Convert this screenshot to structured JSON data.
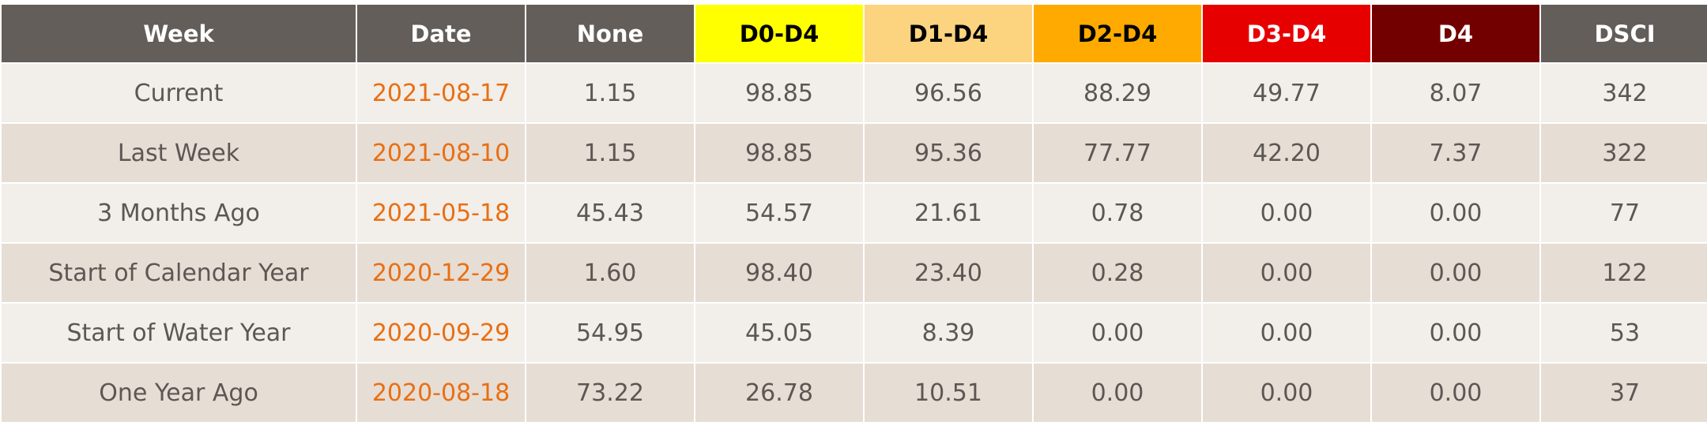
{
  "chart_data": {
    "type": "table",
    "columns": [
      {
        "label": "Week",
        "bg": "#645e5a",
        "fg": "#ffffff"
      },
      {
        "label": "Date",
        "bg": "#645e5a",
        "fg": "#ffffff"
      },
      {
        "label": "None",
        "bg": "#645e5a",
        "fg": "#ffffff"
      },
      {
        "label": "D0-D4",
        "bg": "#ffff00",
        "fg": "#000000"
      },
      {
        "label": "D1-D4",
        "bg": "#fcd37f",
        "fg": "#000000"
      },
      {
        "label": "D2-D4",
        "bg": "#ffaa00",
        "fg": "#000000"
      },
      {
        "label": "D3-D4",
        "bg": "#e60000",
        "fg": "#ffffff"
      },
      {
        "label": "D4",
        "bg": "#730000",
        "fg": "#ffffff"
      },
      {
        "label": "DSCI",
        "bg": "#645e5a",
        "fg": "#ffffff"
      }
    ],
    "rows": [
      {
        "week": "Current",
        "date": "2021-08-17",
        "values": [
          "1.15",
          "98.85",
          "96.56",
          "88.29",
          "49.77",
          "8.07",
          "342"
        ]
      },
      {
        "week": "Last Week",
        "date": "2021-08-10",
        "values": [
          "1.15",
          "98.85",
          "95.36",
          "77.77",
          "42.20",
          "7.37",
          "322"
        ]
      },
      {
        "week": "3 Months Ago",
        "date": "2021-05-18",
        "values": [
          "45.43",
          "54.57",
          "21.61",
          "0.78",
          "0.00",
          "0.00",
          "77"
        ]
      },
      {
        "week": "Start of Calendar Year",
        "date": "2020-12-29",
        "values": [
          "1.60",
          "98.40",
          "23.40",
          "0.28",
          "0.00",
          "0.00",
          "122"
        ]
      },
      {
        "week": "Start of Water Year",
        "date": "2020-09-29",
        "values": [
          "54.95",
          "45.05",
          "8.39",
          "0.00",
          "0.00",
          "0.00",
          "53"
        ]
      },
      {
        "week": "One Year Ago",
        "date": "2020-08-18",
        "values": [
          "73.22",
          "26.78",
          "10.51",
          "0.00",
          "0.00",
          "0.00",
          "37"
        ]
      }
    ]
  }
}
